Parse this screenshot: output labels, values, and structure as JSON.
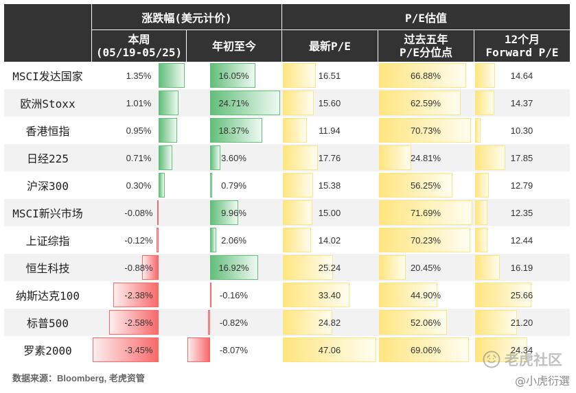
{
  "colors": {
    "header_bg": "#333333",
    "header_text": "#ffffff",
    "row_alt_bg": "#f2f2f2",
    "positive_bar": "#63be7b",
    "negative_bar": "#f8696b",
    "pe_bar": "#ffe57f",
    "footer_text": "#666666"
  },
  "chart_data": {
    "type": "table",
    "column_groups": [
      {
        "label": "涨跌幅(美元计价)",
        "columns": [
          {
            "label": [
              "本周",
              "(05/19-05/25)"
            ],
            "unit": "%"
          },
          {
            "label": [
              "年初至今"
            ],
            "unit": "%"
          }
        ]
      },
      {
        "label": "P/E估值",
        "columns": [
          {
            "label": [
              "最新P/E"
            ],
            "unit": ""
          },
          {
            "label": [
              "过去五年",
              "P/E分位点"
            ],
            "unit": "%"
          },
          {
            "label": [
              "12个月",
              "Forward P/E"
            ],
            "unit": ""
          }
        ]
      }
    ],
    "rows": [
      {
        "name": "MSCI发达国家",
        "values": [
          1.35,
          16.05,
          16.51,
          66.88,
          14.64
        ]
      },
      {
        "name": "欧洲Stoxx",
        "values": [
          1.01,
          24.71,
          15.6,
          62.59,
          14.37
        ]
      },
      {
        "name": "香港恒指",
        "values": [
          0.95,
          18.37,
          11.94,
          70.73,
          10.3
        ]
      },
      {
        "name": "日经225",
        "values": [
          0.71,
          3.6,
          17.76,
          24.81,
          17.85
        ]
      },
      {
        "name": "沪深300",
        "values": [
          0.3,
          0.79,
          15.38,
          56.25,
          12.79
        ]
      },
      {
        "name": "MSCI新兴市场",
        "values": [
          -0.08,
          9.96,
          15.0,
          71.69,
          12.35
        ]
      },
      {
        "name": "上证综指",
        "values": [
          -0.12,
          2.06,
          14.02,
          70.23,
          12.44
        ]
      },
      {
        "name": "恒生科技",
        "values": [
          -0.88,
          16.92,
          25.24,
          20.45,
          16.19
        ]
      },
      {
        "name": "纳斯达克100",
        "values": [
          -2.38,
          -0.16,
          33.4,
          44.9,
          25.66
        ]
      },
      {
        "name": "标普500",
        "values": [
          -2.58,
          -0.82,
          24.82,
          52.06,
          21.2
        ]
      },
      {
        "name": "罗素2000",
        "values": [
          -3.45,
          -8.07,
          47.06,
          69.06,
          24.34
        ]
      }
    ]
  },
  "footer": {
    "source": "数据来源：Bloomberg, 老虎资管"
  },
  "watermark": {
    "brand": "老虎社区",
    "handle": "@小虎衍選",
    "logo_icon": "tiger-logo-icon"
  }
}
